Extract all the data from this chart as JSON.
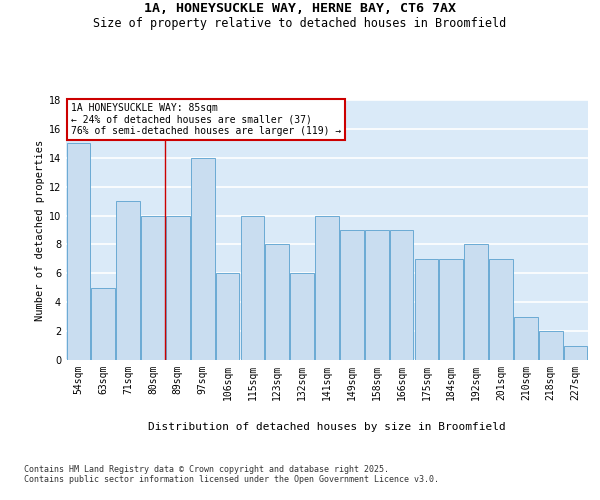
{
  "title": "1A, HONEYSUCKLE WAY, HERNE BAY, CT6 7AX",
  "subtitle": "Size of property relative to detached houses in Broomfield",
  "xlabel": "Distribution of detached houses by size in Broomfield",
  "ylabel": "Number of detached properties",
  "categories": [
    "54sqm",
    "63sqm",
    "71sqm",
    "80sqm",
    "89sqm",
    "97sqm",
    "106sqm",
    "115sqm",
    "123sqm",
    "132sqm",
    "141sqm",
    "149sqm",
    "158sqm",
    "166sqm",
    "175sqm",
    "184sqm",
    "192sqm",
    "201sqm",
    "210sqm",
    "218sqm",
    "227sqm"
  ],
  "values": [
    15,
    5,
    11,
    10,
    10,
    14,
    6,
    10,
    8,
    6,
    10,
    9,
    9,
    9,
    7,
    7,
    8,
    7,
    3,
    2,
    1
  ],
  "bar_color": "#c9ddf0",
  "bar_edge_color": "#6aaad4",
  "background_color": "#daeaf8",
  "grid_color": "#ffffff",
  "annotation_text": "1A HONEYSUCKLE WAY: 85sqm\n← 24% of detached houses are smaller (37)\n76% of semi-detached houses are larger (119) →",
  "annotation_box_color": "#ffffff",
  "annotation_box_edge_color": "#cc0000",
  "vline_x": 3.5,
  "vline_color": "#cc0000",
  "ylim": [
    0,
    18
  ],
  "yticks": [
    0,
    2,
    4,
    6,
    8,
    10,
    12,
    14,
    16,
    18
  ],
  "footer": "Contains HM Land Registry data © Crown copyright and database right 2025.\nContains public sector information licensed under the Open Government Licence v3.0.",
  "title_fontsize": 9.5,
  "subtitle_fontsize": 8.5,
  "xlabel_fontsize": 8,
  "ylabel_fontsize": 7.5,
  "tick_fontsize": 7,
  "annotation_fontsize": 7,
  "footer_fontsize": 6
}
